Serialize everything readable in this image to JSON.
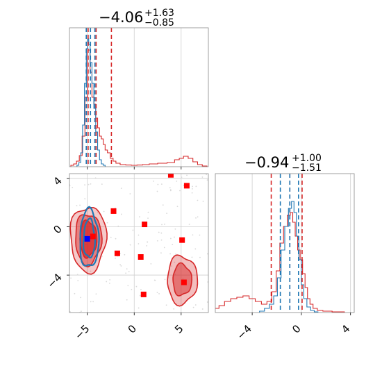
{
  "chart_data": [
    {
      "type": "histogram",
      "panel": "marginal-x",
      "title": {
        "value": "−4.06",
        "plus": "+1.63",
        "minus": "−0.85"
      },
      "xlim": [
        -6.9,
        7.9
      ],
      "xticks": [
        -5,
        0,
        5
      ],
      "grid": true,
      "series": [
        {
          "color": "#d62728",
          "quantiles": [
            -4.91,
            -4.06,
            -2.43
          ],
          "bins": [
            [
              -6.6,
              0.01
            ],
            [
              -6.3,
              0.02
            ],
            [
              -6.0,
              0.04
            ],
            [
              -5.7,
              0.08
            ],
            [
              -5.4,
              0.22
            ],
            [
              -5.1,
              0.5
            ],
            [
              -4.8,
              0.84
            ],
            [
              -4.6,
              0.68
            ],
            [
              -4.4,
              0.5
            ],
            [
              -4.2,
              0.45
            ],
            [
              -4.0,
              0.35
            ],
            [
              -3.8,
              0.28
            ],
            [
              -3.6,
              0.22
            ],
            [
              -3.4,
              0.2
            ],
            [
              -3.2,
              0.16
            ],
            [
              -3.0,
              0.12
            ],
            [
              -2.7,
              0.1
            ],
            [
              -2.4,
              0.06
            ],
            [
              -2.1,
              0.04
            ],
            [
              -1.8,
              0.025
            ],
            [
              -1.2,
              0.015
            ],
            [
              -0.6,
              0.012
            ],
            [
              0.0,
              0.01
            ],
            [
              0.6,
              0.012
            ],
            [
              1.2,
              0.015
            ],
            [
              2.0,
              0.02
            ],
            [
              3.0,
              0.025
            ],
            [
              4.0,
              0.03
            ],
            [
              4.6,
              0.05
            ],
            [
              5.0,
              0.06
            ],
            [
              5.5,
              0.075
            ],
            [
              6.0,
              0.06
            ],
            [
              6.5,
              0.035
            ],
            [
              7.0,
              0.015
            ],
            [
              7.5,
              0.005
            ]
          ]
        },
        {
          "color": "#1f77b4",
          "quantiles": [
            -5.11,
            -4.66,
            -4.19
          ],
          "bins": [
            [
              -6.0,
              0.01
            ],
            [
              -5.8,
              0.03
            ],
            [
              -5.6,
              0.1
            ],
            [
              -5.4,
              0.3
            ],
            [
              -5.2,
              0.6
            ],
            [
              -5.0,
              0.85
            ],
            [
              -4.9,
              0.92
            ],
            [
              -4.8,
              0.88
            ],
            [
              -4.6,
              0.75
            ],
            [
              -4.4,
              0.6
            ],
            [
              -4.2,
              0.42
            ],
            [
              -4.0,
              0.25
            ],
            [
              -3.8,
              0.12
            ],
            [
              -3.6,
              0.05
            ],
            [
              -3.4,
              0.02
            ],
            [
              -3.2,
              0.01
            ]
          ]
        }
      ]
    },
    {
      "type": "histogram",
      "panel": "marginal-y",
      "title": {
        "value": "−0.94",
        "plus": "+1.00",
        "minus": "−1.51"
      },
      "xlim": [
        -7.0,
        4.3
      ],
      "xticks": [
        -4,
        0,
        4
      ],
      "grid": true,
      "series": [
        {
          "color": "#d62728",
          "quantiles": [
            -2.45,
            -0.94,
            0.06
          ],
          "bins": [
            [
              -6.9,
              0.03
            ],
            [
              -6.5,
              0.05
            ],
            [
              -6.0,
              0.08
            ],
            [
              -5.5,
              0.1
            ],
            [
              -5.0,
              0.11
            ],
            [
              -4.5,
              0.12
            ],
            [
              -4.0,
              0.1
            ],
            [
              -3.5,
              0.08
            ],
            [
              -3.0,
              0.06
            ],
            [
              -2.6,
              0.08
            ],
            [
              -2.2,
              0.15
            ],
            [
              -1.9,
              0.3
            ],
            [
              -1.6,
              0.5
            ],
            [
              -1.3,
              0.62
            ],
            [
              -1.0,
              0.7
            ],
            [
              -0.8,
              0.72
            ],
            [
              -0.6,
              0.65
            ],
            [
              -0.4,
              0.55
            ],
            [
              -0.2,
              0.45
            ],
            [
              0.0,
              0.38
            ],
            [
              0.2,
              0.28
            ],
            [
              0.4,
              0.18
            ],
            [
              0.6,
              0.1
            ],
            [
              0.8,
              0.06
            ],
            [
              1.1,
              0.03
            ],
            [
              1.5,
              0.015
            ],
            [
              2.0,
              0.01
            ],
            [
              3.0,
              0.005
            ]
          ]
        },
        {
          "color": "#1f77b4",
          "quantiles": [
            -1.71,
            -0.94,
            -0.23
          ],
          "bins": [
            [
              -3.2,
              0.01
            ],
            [
              -2.8,
              0.03
            ],
            [
              -2.4,
              0.06
            ],
            [
              -2.1,
              0.12
            ],
            [
              -1.8,
              0.25
            ],
            [
              -1.5,
              0.45
            ],
            [
              -1.2,
              0.62
            ],
            [
              -0.9,
              0.75
            ],
            [
              -0.7,
              0.8
            ],
            [
              -0.5,
              0.72
            ],
            [
              -0.3,
              0.55
            ],
            [
              -0.1,
              0.38
            ],
            [
              0.1,
              0.2
            ],
            [
              0.3,
              0.1
            ],
            [
              0.6,
              0.04
            ],
            [
              0.9,
              0.015
            ],
            [
              1.2,
              0.005
            ]
          ]
        }
      ]
    },
    {
      "type": "scatter",
      "panel": "joint",
      "xlim": [
        -6.9,
        7.9
      ],
      "ylim": [
        -7.1,
        4.4
      ],
      "xticks": [
        -5,
        0,
        5
      ],
      "yticks": [
        -4,
        0,
        4
      ],
      "grid": true,
      "contours": [
        {
          "color": "#d62728",
          "center": [
            -4.9,
            -1.0
          ],
          "levels": [
            [
              1.9,
              2.7,
              0.25
            ],
            [
              1.4,
              2.1,
              0.45
            ],
            [
              0.9,
              1.5,
              0.75
            ]
          ]
        },
        {
          "color": "#d62728",
          "center": [
            5.1,
            -4.4
          ],
          "levels": [
            [
              1.6,
              2.0,
              0.3
            ],
            [
              1.0,
              1.3,
              0.5
            ]
          ]
        },
        {
          "color": "#1f77b4",
          "center": [
            -4.8,
            -1.0
          ],
          "levels": [
            [
              1.0,
              2.4,
              0
            ],
            [
              0.6,
              1.6,
              0
            ]
          ]
        }
      ],
      "markers": [
        {
          "x": -2.2,
          "y": 1.3,
          "color": "#ff0000"
        },
        {
          "x": 1.1,
          "y": 0.2,
          "color": "#ff0000"
        },
        {
          "x": 3.9,
          "y": 4.3,
          "color": "#ff0000"
        },
        {
          "x": 5.6,
          "y": 3.4,
          "color": "#ff0000"
        },
        {
          "x": 5.1,
          "y": -1.1,
          "color": "#ff0000"
        },
        {
          "x": -1.8,
          "y": -2.2,
          "color": "#ff0000"
        },
        {
          "x": 0.7,
          "y": -2.5,
          "color": "#ff0000"
        },
        {
          "x": 5.3,
          "y": -4.6,
          "color": "#ff0000"
        },
        {
          "x": 1.0,
          "y": -5.6,
          "color": "#ff0000"
        },
        {
          "x": -4.4,
          "y": -0.8,
          "color": "#ff0000"
        },
        {
          "x": -5.0,
          "y": -1.0,
          "color": "#0000ff"
        }
      ]
    }
  ]
}
